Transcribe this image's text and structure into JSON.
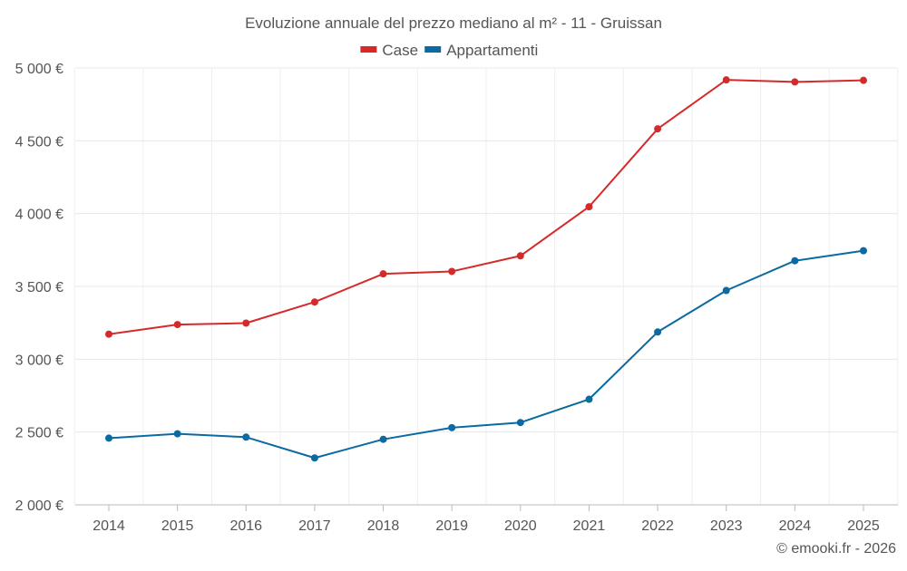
{
  "chart_data": {
    "type": "line",
    "title": "Evoluzione annuale del prezzo mediano al m² - 11 - Gruissan",
    "xlabel": "",
    "ylabel": "",
    "categories": [
      "2014",
      "2015",
      "2016",
      "2017",
      "2018",
      "2019",
      "2020",
      "2021",
      "2022",
      "2023",
      "2024",
      "2025"
    ],
    "ylim": [
      2000,
      5000
    ],
    "yticks": [
      2000,
      2500,
      3000,
      3500,
      4000,
      4500,
      5000
    ],
    "ytick_labels": [
      "2 000 €",
      "2 500 €",
      "3 000 €",
      "3 500 €",
      "4 000 €",
      "4 500 €",
      "5 000 €"
    ],
    "grid": true,
    "legend_position": "top-center",
    "series": [
      {
        "name": "Case",
        "color": "#d62a2a",
        "values": [
          3172,
          3238,
          3248,
          3393,
          3586,
          3603,
          3710,
          4047,
          4582,
          4918,
          4904,
          4915
        ]
      },
      {
        "name": "Appartamenti",
        "color": "#0a6aa1",
        "values": [
          2458,
          2488,
          2465,
          2322,
          2450,
          2530,
          2565,
          2725,
          3187,
          3472,
          3676,
          3745
        ]
      }
    ],
    "credit": "© emooki.fr - 2026"
  }
}
